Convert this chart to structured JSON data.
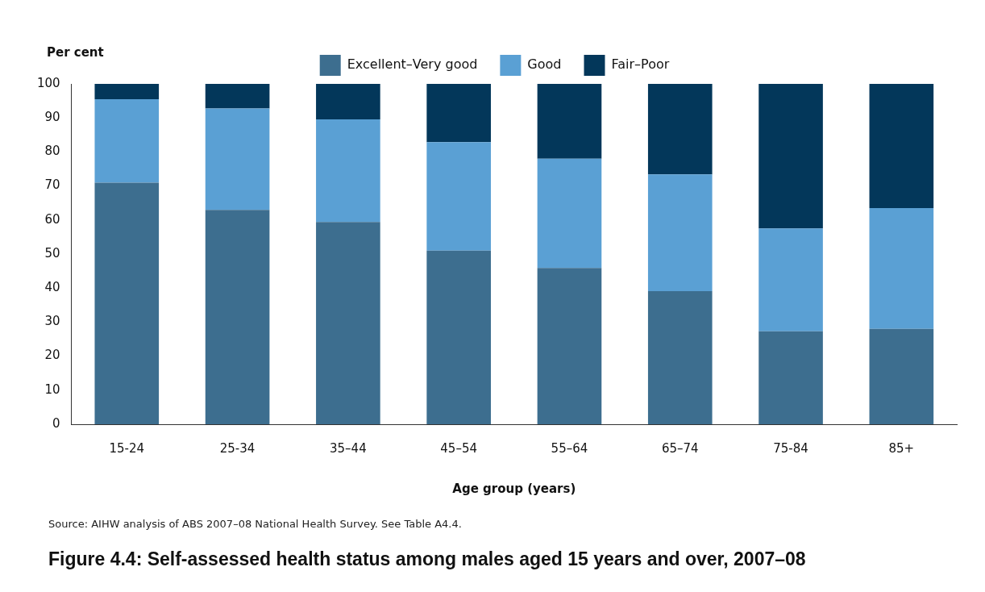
{
  "chart_data": {
    "type": "bar",
    "stacked": true,
    "title": "Figure 4.4: Self-assessed health status among males aged 15 years and over, 2007–08",
    "xlabel": "Age group (years)",
    "ylabel": "Per cent",
    "categories": [
      "15-24",
      "25-34",
      "35–44",
      "45–54",
      "55–64",
      "65–74",
      "75-84",
      "85+"
    ],
    "series": [
      {
        "name": "Excellent–Very good",
        "color": "#3d6e8f",
        "values": [
          71,
          63,
          59.4,
          51,
          45.9,
          39.1,
          27.3,
          28
        ]
      },
      {
        "name": "Good",
        "color": "#5aa0d4",
        "values": [
          24.5,
          29.8,
          30.2,
          31.9,
          32.1,
          34.3,
          30.2,
          35.5
        ]
      },
      {
        "name": "Fair–Poor",
        "color": "#03375a",
        "values": [
          4.5,
          7.2,
          10.4,
          17.1,
          22,
          26.6,
          42.5,
          36.5
        ]
      }
    ],
    "ylim": [
      0,
      100
    ],
    "yticks": [
      0,
      10,
      20,
      30,
      40,
      50,
      60,
      70,
      80,
      90,
      100
    ],
    "grid": false,
    "legend": "top",
    "annotations": [
      "Source: AIHW analysis of ABS 2007–08 National Health Survey. See Table A4.4."
    ]
  }
}
